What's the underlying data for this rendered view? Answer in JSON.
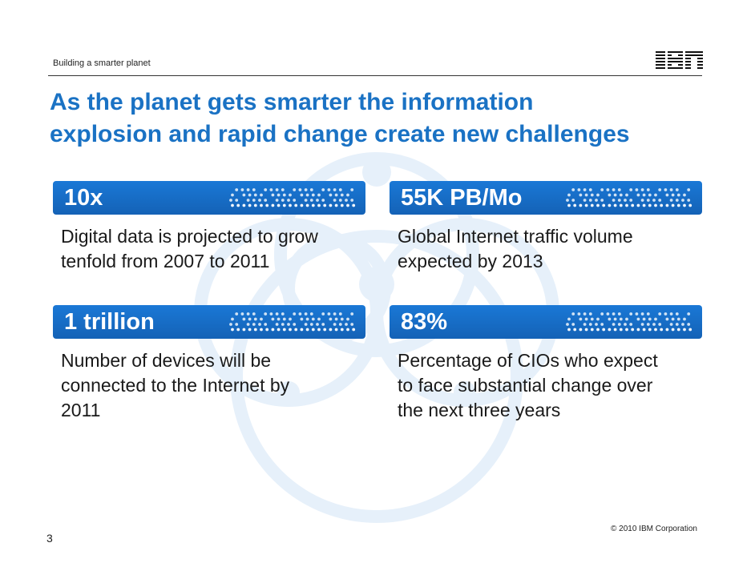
{
  "header": {
    "tagline": "Building a smarter planet",
    "logo_text": "IBM"
  },
  "title": {
    "line1": "As the planet gets smarter the information",
    "line2": "explosion and rapid change create new challenges"
  },
  "stats": [
    {
      "value": "10x",
      "desc_lines": [
        "Digital data is projected to grow",
        "tenfold from 2007 to 2011"
      ]
    },
    {
      "value": "55K PB/Mo",
      "desc_lines": [
        "Global Internet traffic volume",
        "expected by 2013"
      ]
    },
    {
      "value": "1 trillion",
      "desc_lines": [
        "Number of devices will be",
        "connected to the Internet by",
        "2011"
      ]
    },
    {
      "value": "83%",
      "desc_lines": [
        "Percentage of CIOs who expect",
        "to face substantial change over",
        "the next three years"
      ]
    }
  ],
  "footer": {
    "copyright": "© 2010 IBM Corporation",
    "page_number": "3"
  },
  "colors": {
    "accent": "#1a72c4",
    "bar": "#1a78d6",
    "watermark": "#eaf3fb"
  },
  "icons": {
    "logo": "ibm-logo",
    "bar_decoration": "dot-pattern-icon",
    "background": "smarter-planet-watermark"
  }
}
